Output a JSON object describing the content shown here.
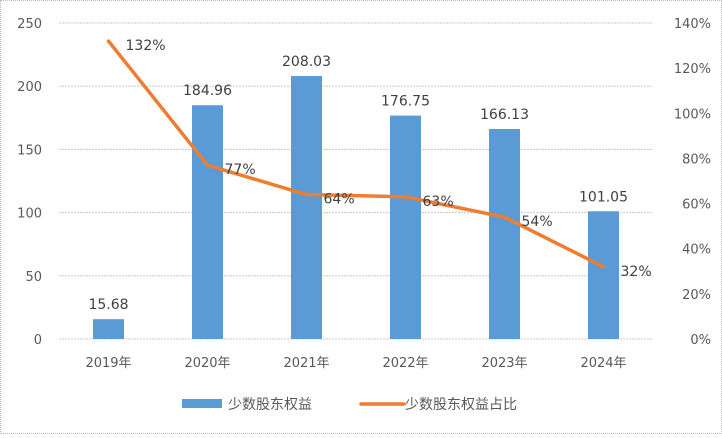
{
  "chart_data": {
    "type": "bar",
    "title": "",
    "categories": [
      "2019年",
      "2020年",
      "2021年",
      "2022年",
      "2023年",
      "2024年"
    ],
    "series": [
      {
        "name": "少数股东权益",
        "type": "bar",
        "axis": "left",
        "color": "#5B9BD5",
        "values": [
          15.68,
          184.96,
          208.03,
          176.75,
          166.13,
          101.05
        ],
        "labels": [
          "15.68",
          "184.96",
          "208.03",
          "176.75",
          "166.13",
          "101.05"
        ]
      },
      {
        "name": "少数股东权益占比",
        "type": "line",
        "axis": "right",
        "color": "#ED7D31",
        "values": [
          132,
          77,
          64,
          63,
          54,
          32
        ],
        "labels": [
          "132%",
          "77%",
          "64%",
          "63%",
          "54%",
          "32%"
        ]
      }
    ],
    "left_axis": {
      "ylim": [
        0,
        250
      ],
      "ticks": [
        "0",
        "50",
        "100",
        "150",
        "200",
        "250"
      ]
    },
    "right_axis": {
      "ylim": [
        0,
        140
      ],
      "ticks": [
        "0%",
        "20%",
        "40%",
        "60%",
        "80%",
        "100%",
        "120%",
        "140%"
      ]
    },
    "xlabel": "",
    "ylabel": "",
    "grid": true,
    "legend_position": "bottom"
  },
  "legend": {
    "bar_label": "少数股东权益",
    "line_label": "少数股东权益占比"
  }
}
